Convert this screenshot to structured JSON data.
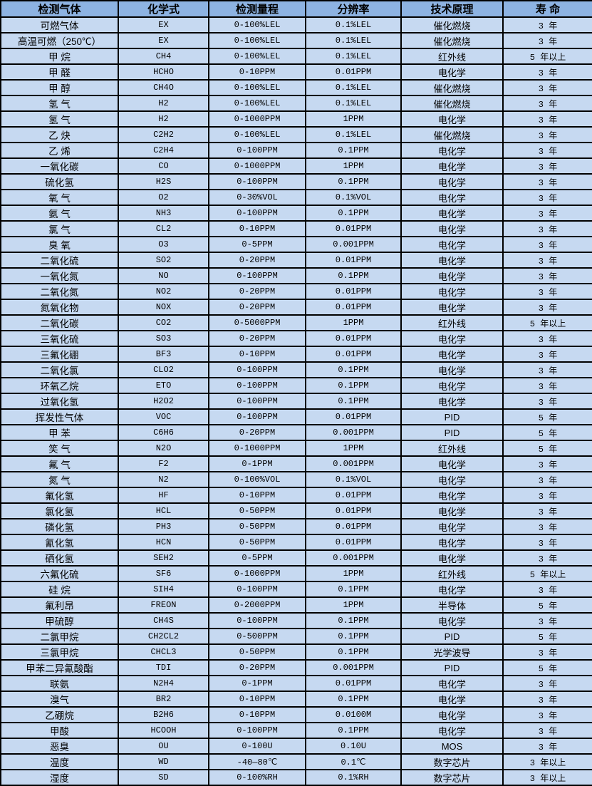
{
  "colors": {
    "header_bg": "#8DB3E2",
    "row_bg": "#C6D9F1",
    "border": "#000000",
    "text": "#000000"
  },
  "table": {
    "columns": [
      {
        "label": "检测气体"
      },
      {
        "label": "化学式"
      },
      {
        "label": "检测量程"
      },
      {
        "label": "分辨率"
      },
      {
        "label": "技术原理"
      },
      {
        "label": "寿 命"
      }
    ],
    "rows": [
      [
        "可燃气体",
        "EX",
        "0-100%LEL",
        "0.1%LEL",
        "催化燃烧",
        "3 年"
      ],
      [
        "高温可燃（250℃）",
        "EX",
        "0-100%LEL",
        "0.1%LEL",
        "催化燃烧",
        "3 年"
      ],
      [
        "甲 烷",
        "CH4",
        "0-100%LEL",
        "0.1%LEL",
        "红外线",
        "5 年以上"
      ],
      [
        "甲 醛",
        "HCHO",
        "0-10PPM",
        "0.01PPM",
        "电化学",
        "3 年"
      ],
      [
        "甲 醇",
        "CH4O",
        "0-100%LEL",
        "0.1%LEL",
        "催化燃烧",
        "3 年"
      ],
      [
        "氢 气",
        "H2",
        "0-100%LEL",
        "0.1%LEL",
        "催化燃烧",
        "3 年"
      ],
      [
        "氢 气",
        "H2",
        "0-1000PPM",
        "1PPM",
        "电化学",
        "3 年"
      ],
      [
        "乙 炔",
        "C2H2",
        "0-100%LEL",
        "0.1%LEL",
        "催化燃烧",
        "3 年"
      ],
      [
        "乙 烯",
        "C2H4",
        "0-100PPM",
        "0.1PPM",
        "电化学",
        "3 年"
      ],
      [
        "一氧化碳",
        "CO",
        "0-1000PPM",
        "1PPM",
        "电化学",
        "3 年"
      ],
      [
        "硫化氢",
        "H2S",
        "0-100PPM",
        "0.1PPM",
        "电化学",
        "3 年"
      ],
      [
        "氧 气",
        "O2",
        "0-30%VOL",
        "0.1%VOL",
        "电化学",
        "3 年"
      ],
      [
        "氨 气",
        "NH3",
        "0-100PPM",
        "0.1PPM",
        "电化学",
        "3 年"
      ],
      [
        "氯 气",
        "CL2",
        "0-10PPM",
        "0.01PPM",
        "电化学",
        "3 年"
      ],
      [
        "臭 氧",
        "O3",
        "0-5PPM",
        "0.001PPM",
        "电化学",
        "3 年"
      ],
      [
        "二氧化硫",
        "SO2",
        "0-20PPM",
        "0.01PPM",
        "电化学",
        "3 年"
      ],
      [
        "一氧化氮",
        "NO",
        "0-100PPM",
        "0.1PPM",
        "电化学",
        "3 年"
      ],
      [
        "二氧化氮",
        "NO2",
        "0-20PPM",
        "0.01PPM",
        "电化学",
        "3 年"
      ],
      [
        "氮氧化物",
        "NOX",
        "0-20PPM",
        "0.01PPM",
        "电化学",
        "3 年"
      ],
      [
        "二氧化碳",
        "CO2",
        "0-5000PPM",
        "1PPM",
        "红外线",
        "5 年以上"
      ],
      [
        "三氧化硫",
        "SO3",
        "0-20PPM",
        "0.01PPM",
        "电化学",
        "3 年"
      ],
      [
        "三氟化硼",
        "BF3",
        "0-10PPM",
        "0.01PPM",
        "电化学",
        "3 年"
      ],
      [
        "二氧化氯",
        "CLO2",
        "0-100PPM",
        "0.1PPM",
        "电化学",
        "3 年"
      ],
      [
        "环氧乙烷",
        "ETO",
        "0-100PPM",
        "0.1PPM",
        "电化学",
        "3 年"
      ],
      [
        "过氧化氢",
        "H2O2",
        "0-100PPM",
        "0.1PPM",
        "电化学",
        "3 年"
      ],
      [
        "挥发性气体",
        "VOC",
        "0-100PPM",
        "0.01PPM",
        "PID",
        "5 年"
      ],
      [
        "甲 苯",
        "C6H6",
        "0-20PPM",
        "0.001PPM",
        "PID",
        "5 年"
      ],
      [
        "笑 气",
        "N2O",
        "0-1000PPM",
        "1PPM",
        "红外线",
        "5 年"
      ],
      [
        "氟 气",
        "F2",
        "0-1PPM",
        "0.001PPM",
        "电化学",
        "3 年"
      ],
      [
        "氮 气",
        "N2",
        "0-100%VOL",
        "0.1%VOL",
        "电化学",
        "3 年"
      ],
      [
        "氟化氢",
        "HF",
        "0-10PPM",
        "0.01PPM",
        "电化学",
        "3 年"
      ],
      [
        "氯化氢",
        "HCL",
        "0-50PPM",
        "0.01PPM",
        "电化学",
        "3 年"
      ],
      [
        "磷化氢",
        "PH3",
        "0-50PPM",
        "0.01PPM",
        "电化学",
        "3 年"
      ],
      [
        "氰化氢",
        "HCN",
        "0-50PPM",
        "0.01PPM",
        "电化学",
        "3 年"
      ],
      [
        "硒化氢",
        "SEH2",
        "0-5PPM",
        "0.001PPM",
        "电化学",
        "3 年"
      ],
      [
        "六氟化硫",
        "SF6",
        "0-1000PPM",
        "1PPM",
        "红外线",
        "5 年以上"
      ],
      [
        "硅 烷",
        "SIH4",
        "0-100PPM",
        "0.1PPM",
        "电化学",
        "3 年"
      ],
      [
        "氟利昂",
        "FREON",
        "0-2000PPM",
        "1PPM",
        "半导体",
        "5 年"
      ],
      [
        "甲硫醇",
        "CH4S",
        "0-100PPM",
        "0.1PPM",
        "电化学",
        "3 年"
      ],
      [
        "二氯甲烷",
        "CH2CL2",
        "0-500PPM",
        "0.1PPM",
        "PID",
        "5 年"
      ],
      [
        "三氯甲烷",
        "CHCL3",
        "0-50PPM",
        "0.1PPM",
        "光学波导",
        "3 年"
      ],
      [
        "甲苯二异氰酸酯",
        "TDI",
        "0-20PPM",
        "0.001PPM",
        "PID",
        "5 年"
      ],
      [
        "联氨",
        "N2H4",
        "0-1PPM",
        "0.01PPM",
        "电化学",
        "3 年"
      ],
      [
        "溴气",
        "BR2",
        "0-10PPM",
        "0.1PPM",
        "电化学",
        "3 年"
      ],
      [
        "乙硼烷",
        "B2H6",
        "0-10PPM",
        "0.0100M",
        "电化学",
        "3 年"
      ],
      [
        "甲酸",
        "HCOOH",
        "0-100PPM",
        "0.1PPM",
        "电化学",
        "3 年"
      ],
      [
        "恶臭",
        "OU",
        "0-100U",
        "0.10U",
        "MOS",
        "3 年"
      ],
      [
        "温度",
        "WD",
        "-40—80℃",
        "0.1℃",
        "数字芯片",
        "3 年以上"
      ],
      [
        "湿度",
        "SD",
        "0-100%RH",
        "0.1%RH",
        "数字芯片",
        "3 年以上"
      ]
    ]
  }
}
